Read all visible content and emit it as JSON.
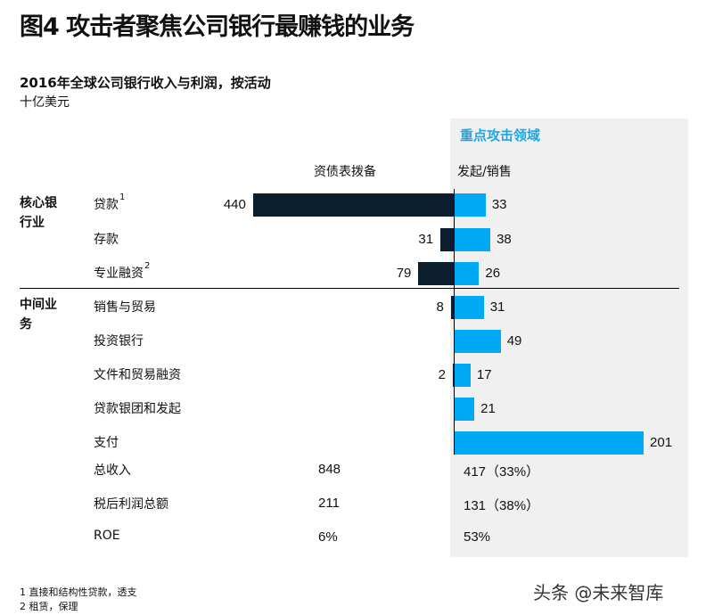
{
  "title": "图4  攻击者聚焦公司银行最赚钱的业务",
  "chart_data": {
    "type": "bar",
    "title": "2016年全球公司银行收入与利润，按活动",
    "unit": "十亿美元",
    "highlight_label": "重点攻击领域",
    "series": [
      {
        "name": "资债表拨备",
        "color": "#0a1e2e"
      },
      {
        "name": "发起/销售",
        "color": "#00a9f4"
      }
    ],
    "groups": [
      {
        "name": "核心银行业"
      },
      {
        "name": "中间业务"
      }
    ],
    "categories": [
      "贷款",
      "存款",
      "专业融资",
      "销售与贸易",
      "投资银行",
      "文件和贸易融资",
      "贷款银团和发起",
      "支付"
    ],
    "category_sup": [
      "1",
      "",
      "2",
      "",
      "",
      "",
      "",
      ""
    ],
    "group_index": [
      0,
      0,
      0,
      1,
      1,
      1,
      1,
      1
    ],
    "balance_sheet": [
      440,
      31,
      79,
      8,
      null,
      2,
      null,
      null
    ],
    "origination": [
      33,
      38,
      26,
      31,
      49,
      17,
      21,
      201
    ],
    "totals": [
      {
        "label": "总收入",
        "left": "848",
        "right": "417（33%）"
      },
      {
        "label": "税后利润总额",
        "left": "211",
        "right": "131（38%）"
      },
      {
        "label": "ROE",
        "left": "6%",
        "right": "53%"
      }
    ]
  },
  "footnotes": [
    "1 直接和结构性贷款，透支",
    "2 租赁，保理"
  ],
  "watermark": "头条 @未来智库"
}
